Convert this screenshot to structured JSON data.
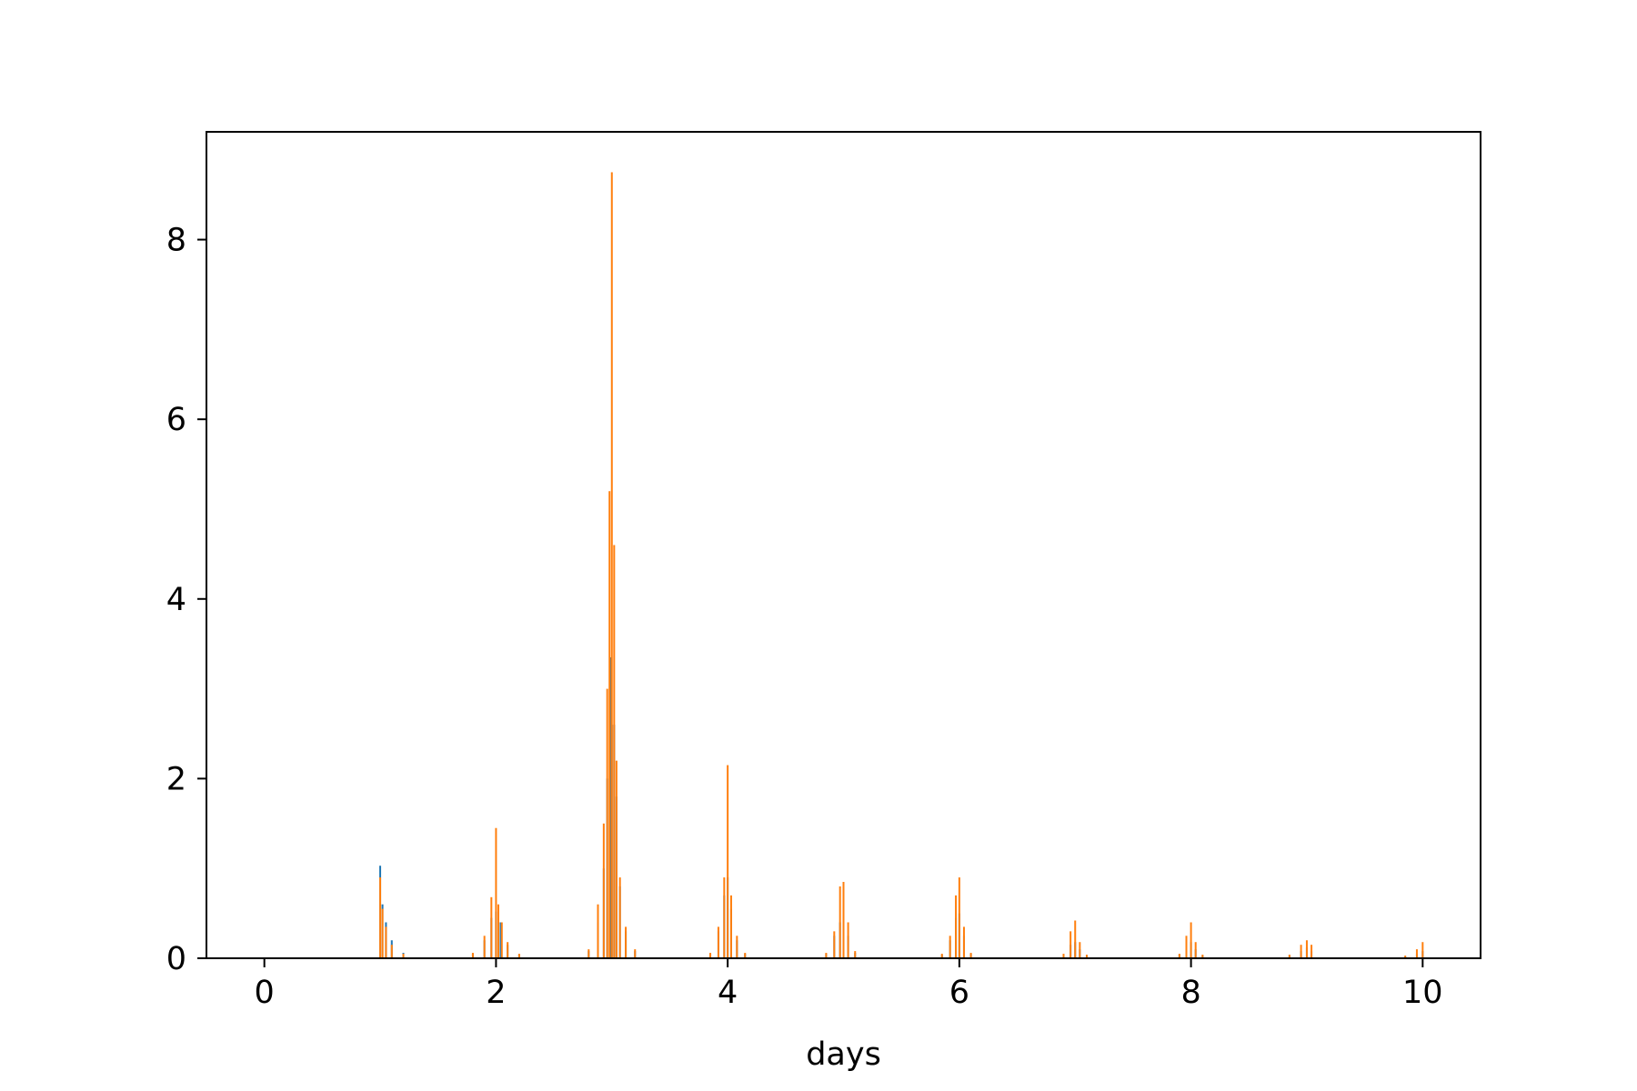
{
  "chart_data": {
    "type": "bar",
    "title": "",
    "xlabel": "days",
    "ylabel": "",
    "xlim": [
      -0.5,
      10.5
    ],
    "ylim": [
      0,
      9.2
    ],
    "xticks": [
      "0",
      "2",
      "4",
      "6",
      "8",
      "10"
    ],
    "yticks": [
      "0",
      "2",
      "4",
      "6",
      "8"
    ],
    "grid": false,
    "legend": "none",
    "colors": {
      "series_1": "#1f77b4",
      "series_2": "#ff7f0e",
      "axis": "#000000"
    },
    "series": [
      {
        "color": "#1f77b4",
        "points": [
          {
            "x": 1.0,
            "y": 1.03
          },
          {
            "x": 1.02,
            "y": 0.6
          },
          {
            "x": 1.05,
            "y": 0.4
          },
          {
            "x": 1.1,
            "y": 0.2
          },
          {
            "x": 1.2,
            "y": 0.06
          },
          {
            "x": 1.8,
            "y": 0.05
          },
          {
            "x": 1.9,
            "y": 0.2
          },
          {
            "x": 1.96,
            "y": 0.45
          },
          {
            "x": 2.0,
            "y": 0.52
          },
          {
            "x": 2.04,
            "y": 0.4
          },
          {
            "x": 2.1,
            "y": 0.15
          },
          {
            "x": 2.2,
            "y": 0.04
          },
          {
            "x": 2.8,
            "y": 0.08
          },
          {
            "x": 2.88,
            "y": 0.4
          },
          {
            "x": 2.93,
            "y": 1.0
          },
          {
            "x": 2.96,
            "y": 2.0
          },
          {
            "x": 2.99,
            "y": 3.35
          },
          {
            "x": 3.0,
            "y": 2.6
          },
          {
            "x": 3.02,
            "y": 2.6
          },
          {
            "x": 3.04,
            "y": 1.8
          },
          {
            "x": 3.07,
            "y": 0.8
          },
          {
            "x": 3.12,
            "y": 0.3
          },
          {
            "x": 3.2,
            "y": 0.08
          },
          {
            "x": 3.85,
            "y": 0.05
          },
          {
            "x": 3.92,
            "y": 0.3
          },
          {
            "x": 3.97,
            "y": 0.7
          },
          {
            "x": 4.0,
            "y": 0.9
          },
          {
            "x": 4.03,
            "y": 0.55
          },
          {
            "x": 4.08,
            "y": 0.2
          },
          {
            "x": 4.15,
            "y": 0.05
          },
          {
            "x": 4.85,
            "y": 0.05
          },
          {
            "x": 4.92,
            "y": 0.25
          },
          {
            "x": 4.97,
            "y": 0.4
          },
          {
            "x": 5.0,
            "y": 0.45
          },
          {
            "x": 5.04,
            "y": 0.25
          },
          {
            "x": 5.1,
            "y": 0.06
          },
          {
            "x": 5.85,
            "y": 0.04
          },
          {
            "x": 5.92,
            "y": 0.2
          },
          {
            "x": 5.97,
            "y": 0.45
          },
          {
            "x": 6.0,
            "y": 0.5
          },
          {
            "x": 6.04,
            "y": 0.25
          },
          {
            "x": 6.1,
            "y": 0.05
          },
          {
            "x": 6.9,
            "y": 0.04
          },
          {
            "x": 6.96,
            "y": 0.15
          },
          {
            "x": 7.0,
            "y": 0.18
          },
          {
            "x": 7.04,
            "y": 0.1
          },
          {
            "x": 7.1,
            "y": 0.03
          },
          {
            "x": 7.9,
            "y": 0.04
          },
          {
            "x": 7.96,
            "y": 0.15
          },
          {
            "x": 8.0,
            "y": 0.18
          },
          {
            "x": 8.04,
            "y": 0.1
          },
          {
            "x": 8.1,
            "y": 0.03
          },
          {
            "x": 8.85,
            "y": 0.03
          },
          {
            "x": 8.95,
            "y": 0.08
          },
          {
            "x": 9.0,
            "y": 0.12
          },
          {
            "x": 9.04,
            "y": 0.08
          },
          {
            "x": 9.85,
            "y": 0.02
          },
          {
            "x": 9.95,
            "y": 0.05
          },
          {
            "x": 10.0,
            "y": 0.08
          }
        ]
      },
      {
        "color": "#ff7f0e",
        "points": [
          {
            "x": 1.0,
            "y": 0.9
          },
          {
            "x": 1.02,
            "y": 0.55
          },
          {
            "x": 1.05,
            "y": 0.35
          },
          {
            "x": 1.1,
            "y": 0.15
          },
          {
            "x": 1.2,
            "y": 0.05
          },
          {
            "x": 1.8,
            "y": 0.06
          },
          {
            "x": 1.9,
            "y": 0.25
          },
          {
            "x": 1.96,
            "y": 0.68
          },
          {
            "x": 2.0,
            "y": 1.45
          },
          {
            "x": 2.02,
            "y": 0.6
          },
          {
            "x": 2.05,
            "y": 0.4
          },
          {
            "x": 2.1,
            "y": 0.18
          },
          {
            "x": 2.2,
            "y": 0.05
          },
          {
            "x": 2.8,
            "y": 0.1
          },
          {
            "x": 2.88,
            "y": 0.6
          },
          {
            "x": 2.93,
            "y": 1.5
          },
          {
            "x": 2.96,
            "y": 3.0
          },
          {
            "x": 2.98,
            "y": 5.2
          },
          {
            "x": 3.0,
            "y": 8.75
          },
          {
            "x": 3.02,
            "y": 4.6
          },
          {
            "x": 3.04,
            "y": 2.2
          },
          {
            "x": 3.07,
            "y": 0.9
          },
          {
            "x": 3.12,
            "y": 0.35
          },
          {
            "x": 3.2,
            "y": 0.1
          },
          {
            "x": 3.85,
            "y": 0.06
          },
          {
            "x": 3.92,
            "y": 0.35
          },
          {
            "x": 3.97,
            "y": 0.9
          },
          {
            "x": 4.0,
            "y": 2.15
          },
          {
            "x": 4.03,
            "y": 0.7
          },
          {
            "x": 4.08,
            "y": 0.25
          },
          {
            "x": 4.15,
            "y": 0.06
          },
          {
            "x": 4.85,
            "y": 0.06
          },
          {
            "x": 4.92,
            "y": 0.3
          },
          {
            "x": 4.97,
            "y": 0.8
          },
          {
            "x": 5.0,
            "y": 0.85
          },
          {
            "x": 5.04,
            "y": 0.4
          },
          {
            "x": 5.1,
            "y": 0.08
          },
          {
            "x": 5.85,
            "y": 0.05
          },
          {
            "x": 5.92,
            "y": 0.25
          },
          {
            "x": 5.97,
            "y": 0.7
          },
          {
            "x": 6.0,
            "y": 0.9
          },
          {
            "x": 6.04,
            "y": 0.35
          },
          {
            "x": 6.1,
            "y": 0.06
          },
          {
            "x": 6.9,
            "y": 0.05
          },
          {
            "x": 6.96,
            "y": 0.3
          },
          {
            "x": 7.0,
            "y": 0.42
          },
          {
            "x": 7.04,
            "y": 0.18
          },
          {
            "x": 7.1,
            "y": 0.04
          },
          {
            "x": 7.9,
            "y": 0.05
          },
          {
            "x": 7.96,
            "y": 0.25
          },
          {
            "x": 8.0,
            "y": 0.4
          },
          {
            "x": 8.04,
            "y": 0.18
          },
          {
            "x": 8.1,
            "y": 0.04
          },
          {
            "x": 8.85,
            "y": 0.04
          },
          {
            "x": 8.95,
            "y": 0.15
          },
          {
            "x": 9.0,
            "y": 0.2
          },
          {
            "x": 9.04,
            "y": 0.15
          },
          {
            "x": 9.85,
            "y": 0.03
          },
          {
            "x": 9.95,
            "y": 0.1
          },
          {
            "x": 10.0,
            "y": 0.18
          }
        ]
      }
    ]
  }
}
